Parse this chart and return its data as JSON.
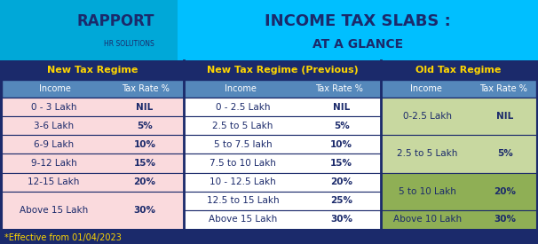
{
  "title1": "INCOME TAX SLABS :",
  "title2": "AT A GLANCE",
  "header_bg": "#00BFFF",
  "header_left_bg": "#00A8D8",
  "main_bg": "#1B2A6B",
  "footer_text": "*Effective from 01/04/2023",
  "footer_color": "#FFD700",
  "col1_header": "New Tax Regime",
  "col2_header": "New Tax Regime (Previous)",
  "col3_header": "Old Tax Regime",
  "section_header_color": "#FFD700",
  "subheader_bg": "#5588BB",
  "subheader_text": "#FFFFFF",
  "col1_row_bg": "#FADADD",
  "col2_row_bg": "#FFFFFF",
  "col3_row_bg_a": "#C8D8A0",
  "col3_row_bg_b": "#8FAF55",
  "col1_data": [
    [
      "0 - 3 Lakh",
      "NIL"
    ],
    [
      "3-6 Lakh",
      "5%"
    ],
    [
      "6-9 Lakh",
      "10%"
    ],
    [
      "9-12 Lakh",
      "15%"
    ],
    [
      "12-15 Lakh",
      "20%"
    ],
    [
      "Above 15 Lakh",
      "30%"
    ]
  ],
  "col2_data": [
    [
      "0 - 2.5 Lakh",
      "NIL"
    ],
    [
      "2.5 to 5 Lakh",
      "5%"
    ],
    [
      "5 to 7.5 lakh",
      "10%"
    ],
    [
      "7.5 to 10 Lakh",
      "15%"
    ],
    [
      "10 - 12.5 Lakh",
      "20%"
    ],
    [
      "12.5 to 15 Lakh",
      "25%"
    ],
    [
      "Above 15 Lakh",
      "30%"
    ]
  ],
  "col3_data": [
    [
      "0-2.5 Lakh",
      "NIL",
      "a"
    ],
    [
      "2.5 to 5 Lakh",
      "5%",
      "a"
    ],
    [
      "5 to 10 Lakh",
      "20%",
      "b"
    ],
    [
      "Above 10 Lakh",
      "30%",
      "b"
    ]
  ],
  "col3_merge": [
    2,
    2,
    2,
    1
  ]
}
